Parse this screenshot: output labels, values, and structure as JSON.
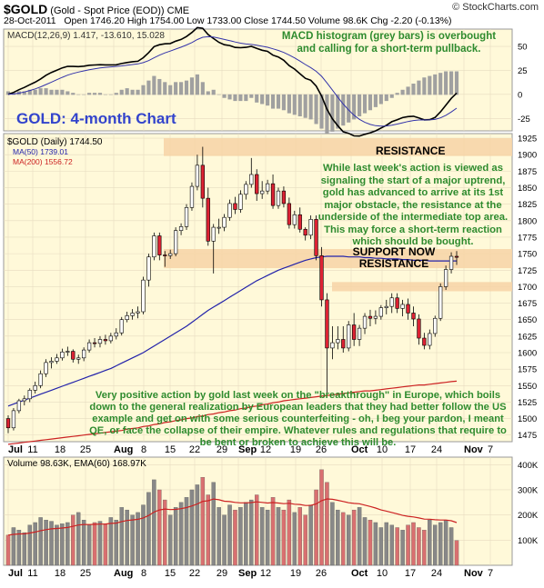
{
  "header": {
    "symbol": "$GOLD",
    "description": "(Gold - Spot Price (EOD)) CME",
    "date": "28-Oct-2011",
    "quote": "Open 1746.20  High 1754.00  Low 1733.00  Close 1744.50  Volume 98.6K  Chg -2.20 (-0.13%)",
    "logo": "© StockCharts.com"
  },
  "chart_title": "GOLD: 4-month Chart",
  "macd": {
    "legend": "MACD(12,26,9) 1.417, -13.610, 15.028",
    "annotation": "MACD histogram (grey bars) is overbought and calling for a short-term pullback.",
    "y_ticks": [
      "50",
      "25",
      "0",
      "-25"
    ]
  },
  "price": {
    "legend_main": "$GOLD (Daily) 1744.50",
    "legend_ma50": "MA(50) 1739.01",
    "legend_ma200": "MA(200) 1556.72",
    "y_ticks": [
      "1925",
      "1900",
      "1875",
      "1850",
      "1825",
      "1800",
      "1775",
      "1750",
      "1725",
      "1700",
      "1675",
      "1650",
      "1625",
      "1600",
      "1575",
      "1550",
      "1525",
      "1500",
      "1475"
    ],
    "label_resistance": "RESISTANCE",
    "label_support": "SUPPORT NOW RESISTANCE",
    "annotation_top": "While last week's action is viewed as signaling the start of a major uptrend, gold has advanced to arrive at its 1st major obstacle, the resistance at the underside of the intermediate top area. This may force a short-term reaction which should be bought.",
    "annotation_bottom": "Very positive action by gold last week on the \"breakthrough\" in Europe, which boils down to the general realization by European leaders that they had better follow the US example and get on with some serious counterfeiting - oh, I beg your pardon, I meant QE, or face the collapse of their empire. Whatever rules and regulations that require to be bent or broken to achieve this will be."
  },
  "volume": {
    "legend": "Volume 98.63K, EMA(60) 168.97K",
    "y_ticks": [
      "400K",
      "300K",
      "200K",
      "100K"
    ]
  },
  "x_axis": [
    "Jul",
    "11",
    "18",
    "25",
    "Aug",
    "8",
    "15",
    "22",
    "29",
    "Sep",
    "12",
    "19",
    "26",
    "Oct",
    "10",
    "17",
    "24",
    "Nov",
    "7"
  ],
  "colors": {
    "up": "#ffffff",
    "down": "#dd2233",
    "ma50": "#2222aa",
    "ma200": "#cc2222",
    "band": "#f7d3a6",
    "panel_bg": "#fff9d9",
    "vol_up": "#888888",
    "vol_down": "#d97070"
  },
  "chart_data": {
    "type": "candlestick",
    "title": "GOLD: 4-month Chart",
    "dates": [
      "Jul 1",
      "Jul 5",
      "Jul 6",
      "Jul 7",
      "Jul 8",
      "Jul 11",
      "Jul 12",
      "Jul 13",
      "Jul 14",
      "Jul 15",
      "Jul 18",
      "Jul 19",
      "Jul 20",
      "Jul 21",
      "Jul 22",
      "Jul 25",
      "Jul 26",
      "Jul 27",
      "Jul 28",
      "Jul 29",
      "Aug 1",
      "Aug 2",
      "Aug 3",
      "Aug 4",
      "Aug 5",
      "Aug 8",
      "Aug 9",
      "Aug 10",
      "Aug 11",
      "Aug 12",
      "Aug 15",
      "Aug 16",
      "Aug 17",
      "Aug 18",
      "Aug 19",
      "Aug 22",
      "Aug 23",
      "Aug 24",
      "Aug 25",
      "Aug 26",
      "Aug 29",
      "Aug 30",
      "Aug 31",
      "Sep 1",
      "Sep 2",
      "Sep 6",
      "Sep 7",
      "Sep 8",
      "Sep 9",
      "Sep 12",
      "Sep 13",
      "Sep 14",
      "Sep 15",
      "Sep 16",
      "Sep 19",
      "Sep 20",
      "Sep 21",
      "Sep 22",
      "Sep 23",
      "Sep 26",
      "Sep 27",
      "Sep 28",
      "Sep 29",
      "Sep 30",
      "Oct 3",
      "Oct 4",
      "Oct 5",
      "Oct 6",
      "Oct 7",
      "Oct 10",
      "Oct 11",
      "Oct 12",
      "Oct 13",
      "Oct 14",
      "Oct 17",
      "Oct 18",
      "Oct 19",
      "Oct 20",
      "Oct 21",
      "Oct 24",
      "Oct 25",
      "Oct 26",
      "Oct 27",
      "Oct 28"
    ],
    "open": [
      1500,
      1486,
      1512,
      1527,
      1530,
      1543,
      1550,
      1568,
      1585,
      1587,
      1592,
      1601,
      1602,
      1590,
      1592,
      1604,
      1615,
      1614,
      1620,
      1618,
      1625,
      1630,
      1650,
      1656,
      1660,
      1662,
      1710,
      1745,
      1777,
      1748,
      1747,
      1750,
      1785,
      1791,
      1820,
      1852,
      1884,
      1834,
      1769,
      1790,
      1790,
      1805,
      1826,
      1817,
      1840,
      1855,
      1870,
      1841,
      1845,
      1856,
      1823,
      1845,
      1826,
      1794,
      1809,
      1787,
      1778,
      1802,
      1747,
      1680,
      1607,
      1615,
      1620,
      1607,
      1642,
      1620,
      1637,
      1655,
      1652,
      1655,
      1668,
      1670,
      1683,
      1667,
      1673,
      1660,
      1651,
      1622,
      1611,
      1629,
      1652,
      1700,
      1726,
      1746
    ],
    "close": [
      1486,
      1512,
      1527,
      1530,
      1543,
      1550,
      1568,
      1585,
      1587,
      1592,
      1601,
      1602,
      1590,
      1592,
      1604,
      1615,
      1614,
      1620,
      1618,
      1625,
      1630,
      1650,
      1656,
      1660,
      1662,
      1710,
      1745,
      1777,
      1748,
      1747,
      1750,
      1785,
      1791,
      1820,
      1852,
      1884,
      1834,
      1769,
      1790,
      1790,
      1805,
      1826,
      1817,
      1840,
      1855,
      1870,
      1841,
      1845,
      1856,
      1823,
      1845,
      1826,
      1794,
      1809,
      1787,
      1778,
      1802,
      1747,
      1680,
      1607,
      1615,
      1620,
      1607,
      1642,
      1620,
      1637,
      1655,
      1652,
      1655,
      1668,
      1670,
      1683,
      1667,
      1673,
      1660,
      1651,
      1622,
      1611,
      1629,
      1652,
      1700,
      1726,
      1746,
      1744.5
    ],
    "high": [
      1505,
      1516,
      1530,
      1535,
      1546,
      1556,
      1573,
      1590,
      1593,
      1598,
      1606,
      1609,
      1605,
      1597,
      1608,
      1620,
      1622,
      1625,
      1627,
      1630,
      1637,
      1654,
      1662,
      1666,
      1670,
      1715,
      1750,
      1782,
      1782,
      1754,
      1756,
      1790,
      1796,
      1825,
      1858,
      1900,
      1912,
      1850,
      1795,
      1803,
      1810,
      1832,
      1836,
      1846,
      1860,
      1895,
      1878,
      1860,
      1862,
      1870,
      1850,
      1852,
      1835,
      1815,
      1820,
      1790,
      1808,
      1808,
      1760,
      1690,
      1640,
      1640,
      1640,
      1648,
      1660,
      1642,
      1660,
      1665,
      1664,
      1672,
      1680,
      1690,
      1690,
      1680,
      1682,
      1670,
      1658,
      1630,
      1635,
      1656,
      1705,
      1732,
      1752,
      1754
    ],
    "low": [
      1478,
      1482,
      1508,
      1520,
      1525,
      1538,
      1546,
      1563,
      1576,
      1583,
      1588,
      1595,
      1585,
      1583,
      1587,
      1600,
      1608,
      1608,
      1612,
      1614,
      1620,
      1626,
      1646,
      1650,
      1652,
      1658,
      1700,
      1740,
      1740,
      1730,
      1742,
      1746,
      1778,
      1786,
      1815,
      1846,
      1820,
      1762,
      1720,
      1780,
      1784,
      1800,
      1810,
      1812,
      1832,
      1850,
      1830,
      1833,
      1840,
      1818,
      1818,
      1820,
      1788,
      1788,
      1782,
      1770,
      1772,
      1740,
      1670,
      1535,
      1590,
      1605,
      1600,
      1602,
      1610,
      1610,
      1628,
      1640,
      1643,
      1650,
      1658,
      1660,
      1660,
      1655,
      1650,
      1640,
      1612,
      1605,
      1605,
      1624,
      1648,
      1695,
      1720,
      1733
    ],
    "ma50": [
      1519,
      1522,
      1525,
      1528,
      1531,
      1534,
      1537,
      1540,
      1543,
      1546,
      1549,
      1552,
      1555,
      1558,
      1561,
      1564,
      1567,
      1570,
      1573,
      1576,
      1580,
      1584,
      1588,
      1592,
      1596,
      1600,
      1605,
      1610,
      1615,
      1620,
      1625,
      1630,
      1635,
      1640,
      1646,
      1652,
      1658,
      1664,
      1669,
      1674,
      1679,
      1684,
      1689,
      1694,
      1699,
      1704,
      1709,
      1713,
      1717,
      1721,
      1725,
      1728,
      1731,
      1734,
      1737,
      1740,
      1742,
      1744,
      1745,
      1746,
      1746,
      1746,
      1746,
      1745,
      1745,
      1745,
      1744,
      1744,
      1743,
      1743,
      1742,
      1742,
      1742,
      1741,
      1741,
      1740,
      1740,
      1740,
      1739,
      1739,
      1739,
      1739,
      1739,
      1739
    ],
    "ma200": [
      1461,
      1462,
      1463,
      1464,
      1465,
      1466,
      1467,
      1468,
      1469,
      1470,
      1471,
      1472,
      1473,
      1474,
      1475,
      1476,
      1477,
      1478,
      1479,
      1480,
      1481,
      1482,
      1484,
      1485,
      1486,
      1488,
      1489,
      1491,
      1492,
      1494,
      1495,
      1497,
      1498,
      1500,
      1501,
      1503,
      1504,
      1506,
      1507,
      1509,
      1510,
      1512,
      1513,
      1515,
      1516,
      1518,
      1519,
      1521,
      1522,
      1524,
      1525,
      1527,
      1528,
      1529,
      1530,
      1531,
      1532,
      1533,
      1534,
      1535,
      1536,
      1537,
      1538,
      1539,
      1540,
      1541,
      1542,
      1542,
      1543,
      1544,
      1545,
      1546,
      1547,
      1548,
      1549,
      1550,
      1551,
      1551,
      1552,
      1553,
      1554,
      1555,
      1556,
      1556.72
    ],
    "volume": [
      120,
      150,
      140,
      130,
      160,
      170,
      190,
      180,
      175,
      160,
      165,
      170,
      200,
      210,
      180,
      160,
      170,
      175,
      165,
      190,
      180,
      230,
      220,
      200,
      210,
      240,
      290,
      340,
      300,
      260,
      200,
      230,
      250,
      270,
      300,
      320,
      350,
      280,
      330,
      230,
      200,
      240,
      220,
      230,
      250,
      260,
      280,
      230,
      220,
      270,
      230,
      220,
      260,
      210,
      230,
      200,
      240,
      300,
      380,
      330,
      250,
      220,
      210,
      200,
      220,
      230,
      190,
      180,
      170,
      150,
      170,
      160,
      150,
      140,
      160,
      170,
      150,
      140,
      180,
      160,
      170,
      180,
      150,
      98.63
    ],
    "macd_hist": [
      2,
      1,
      2,
      2,
      3,
      3,
      4,
      4,
      3,
      3,
      3,
      2,
      1,
      0,
      0,
      1,
      1,
      1,
      0,
      0,
      1,
      3,
      4,
      3,
      3,
      6,
      9,
      12,
      10,
      8,
      6,
      8,
      8,
      9,
      11,
      13,
      8,
      2,
      3,
      0,
      -2,
      -3,
      -4,
      -4,
      -4,
      -2,
      -5,
      -6,
      -7,
      -9,
      -9,
      -10,
      -12,
      -13,
      -14,
      -15,
      -16,
      -19,
      -22,
      -25,
      -24,
      -22,
      -20,
      -18,
      -16,
      -14,
      -12,
      -10,
      -8,
      -6,
      -4,
      -2,
      1,
      3,
      5,
      7,
      9,
      11,
      12,
      13,
      14,
      15,
      15,
      15
    ],
    "ylim": [
      1465,
      1932
    ],
    "volume_ylim": [
      0,
      430
    ],
    "macd_ylim": [
      -38,
      68
    ]
  }
}
